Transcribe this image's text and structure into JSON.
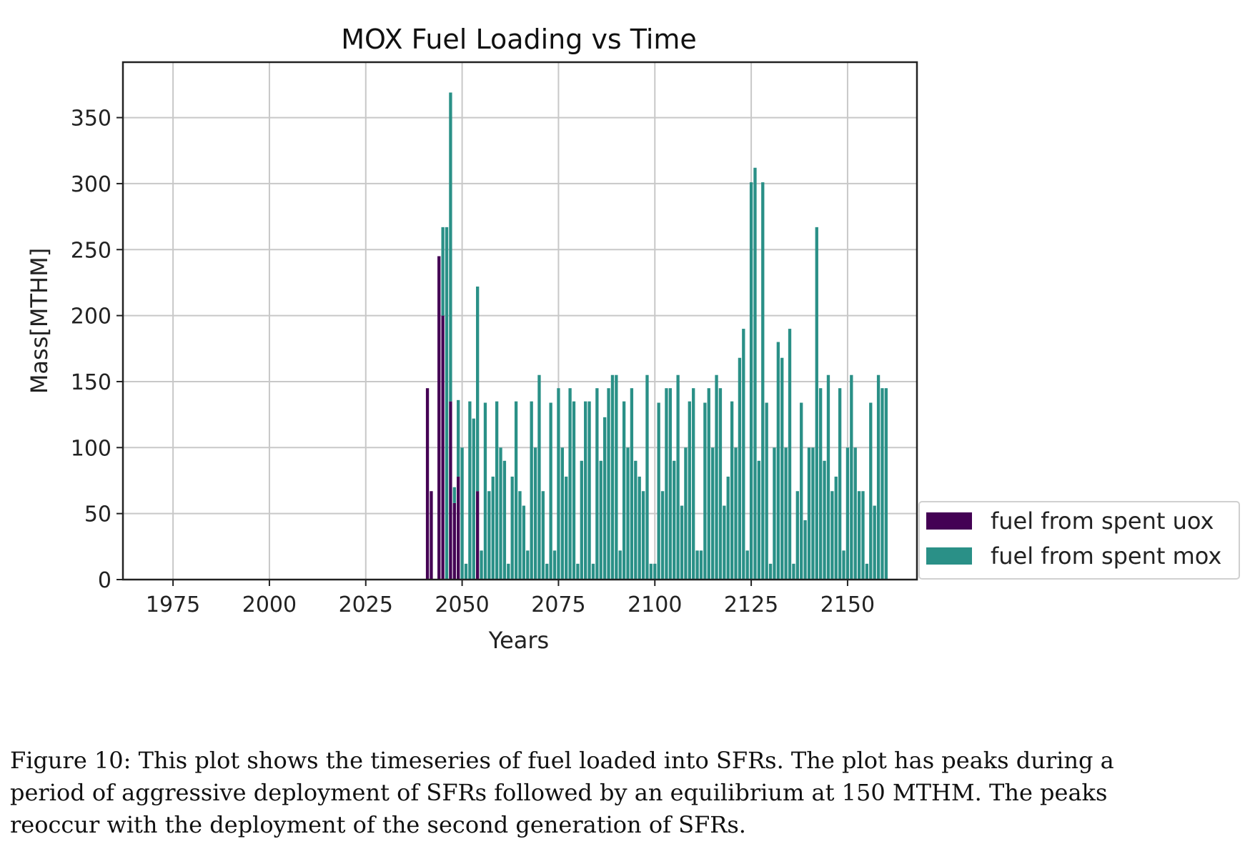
{
  "chart_data": {
    "type": "bar",
    "stacked": true,
    "title": "MOX Fuel Loading vs Time",
    "xlabel": "Years",
    "ylabel": "Mass[MTHM]",
    "xlim": [
      1962,
      2168
    ],
    "ylim": [
      0,
      392
    ],
    "x_ticks": [
      1975,
      2000,
      2025,
      2050,
      2075,
      2100,
      2125,
      2150
    ],
    "y_ticks": [
      0,
      50,
      100,
      150,
      200,
      250,
      300,
      350
    ],
    "grid": true,
    "legend_position": "outside-right-bottom",
    "colors": {
      "uox": "#440154",
      "mox": "#2a9087",
      "grid": "#c8c8c8",
      "frame": "#222222"
    },
    "series": [
      {
        "name": "fuel from spent uox",
        "x": [
          2041,
          2042,
          2043,
          2044,
          2045,
          2046,
          2047,
          2048,
          2049,
          2050,
          2051,
          2052,
          2053,
          2054
        ],
        "values": [
          145,
          67,
          0,
          245,
          200,
          0,
          135,
          58,
          78,
          0,
          0,
          0,
          0,
          67
        ]
      },
      {
        "name": "fuel from spent mox",
        "x": [
          2045,
          2046,
          2047,
          2048,
          2049,
          2050,
          2051,
          2052,
          2053,
          2054,
          2055,
          2056,
          2057,
          2058,
          2059,
          2060,
          2061,
          2062,
          2063,
          2064,
          2065,
          2066,
          2067,
          2068,
          2069,
          2070,
          2071,
          2072,
          2073,
          2074,
          2075,
          2076,
          2077,
          2078,
          2079,
          2080,
          2081,
          2082,
          2083,
          2084,
          2085,
          2086,
          2087,
          2088,
          2089,
          2090,
          2091,
          2092,
          2093,
          2094,
          2095,
          2096,
          2097,
          2098,
          2099,
          2100,
          2101,
          2102,
          2103,
          2104,
          2105,
          2106,
          2107,
          2108,
          2109,
          2110,
          2111,
          2112,
          2113,
          2114,
          2115,
          2116,
          2117,
          2118,
          2119,
          2120,
          2121,
          2122,
          2123,
          2124,
          2125,
          2126,
          2127,
          2128,
          2129,
          2130,
          2131,
          2132,
          2133,
          2134,
          2135,
          2136,
          2137,
          2138,
          2139,
          2140,
          2141,
          2142,
          2143,
          2144,
          2145,
          2146,
          2147,
          2148,
          2149,
          2150,
          2151,
          2152,
          2153,
          2154,
          2155,
          2156,
          2157,
          2158,
          2159,
          2160
        ],
        "values": [
          67,
          267,
          234,
          12,
          58,
          100,
          12,
          135,
          122,
          155,
          22,
          134,
          67,
          78,
          135,
          100,
          90,
          12,
          78,
          135,
          67,
          56,
          22,
          135,
          100,
          155,
          67,
          12,
          134,
          22,
          145,
          100,
          78,
          145,
          135,
          12,
          90,
          135,
          135,
          12,
          145,
          90,
          123,
          145,
          155,
          155,
          22,
          135,
          100,
          145,
          90,
          78,
          67,
          155,
          12,
          12,
          134,
          67,
          145,
          145,
          90,
          155,
          56,
          100,
          135,
          145,
          22,
          22,
          134,
          145,
          100,
          155,
          145,
          56,
          78,
          135,
          100,
          168,
          190,
          22,
          301,
          312,
          90,
          301,
          134,
          12,
          100,
          180,
          168,
          100,
          190,
          12,
          67,
          134,
          45,
          100,
          100,
          267,
          145,
          90,
          155,
          67,
          78,
          145,
          22,
          100,
          155,
          100,
          67,
          67,
          12,
          134,
          56,
          155,
          145,
          145
        ]
      }
    ]
  },
  "caption": "Figure 10: This plot shows the timeseries of fuel loaded into SFRs. The plot has peaks during a period of aggressive deployment of SFRs followed by an equilibrium at 150 MTHM. The peaks reoccur with the deployment of the second generation of SFRs."
}
